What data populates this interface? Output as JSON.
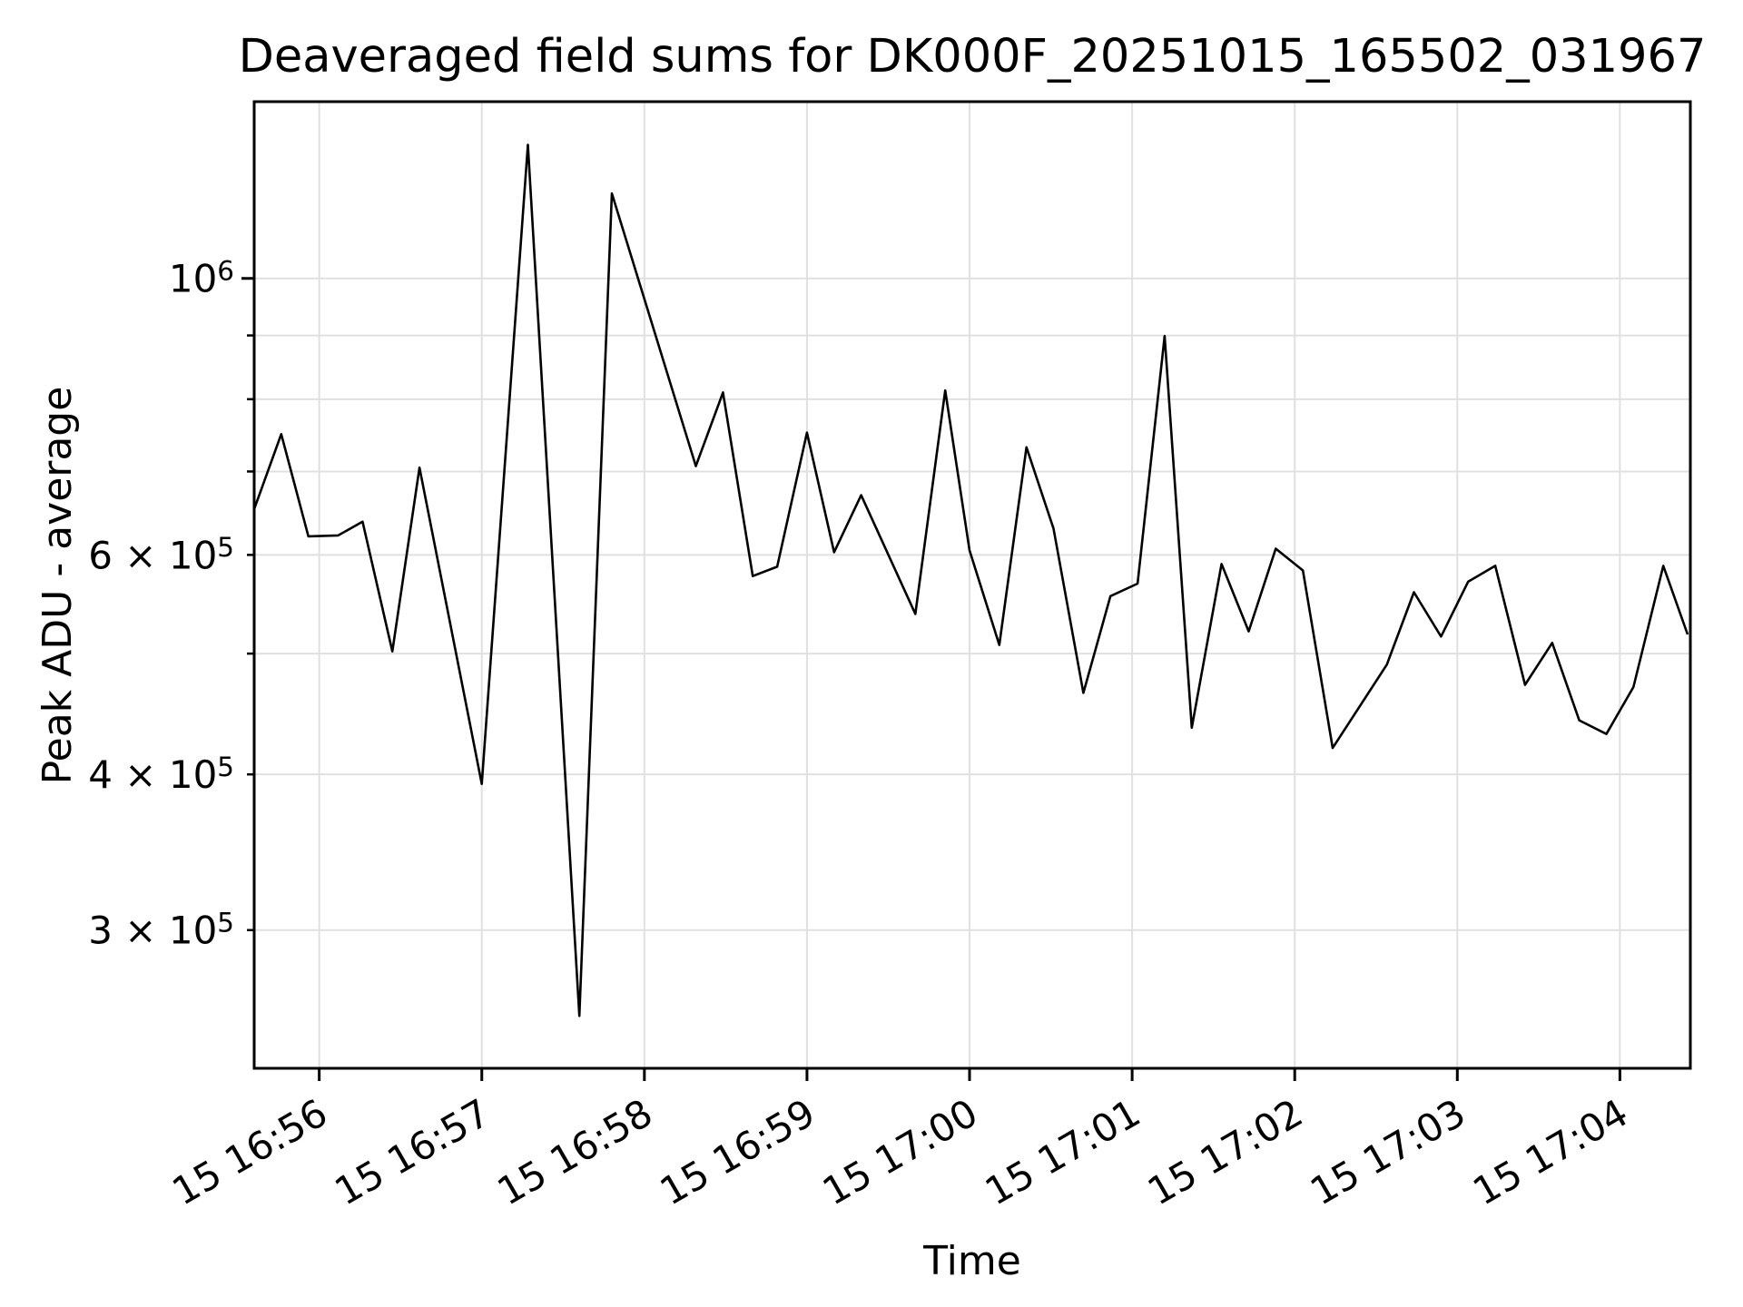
{
  "title": "Deaveraged field sums for DK000F_20251015_165502_031967",
  "x_axis": {
    "label": "Time",
    "ticks": [
      {
        "t": "16:56",
        "label": "15 16:56"
      },
      {
        "t": "16:57",
        "label": "15 16:57"
      },
      {
        "t": "16:58",
        "label": "15 16:58"
      },
      {
        "t": "16:59",
        "label": "15 16:59"
      },
      {
        "t": "17:00",
        "label": "15 17:00"
      },
      {
        "t": "17:01",
        "label": "15 17:01"
      },
      {
        "t": "17:02",
        "label": "15 17:02"
      },
      {
        "t": "17:03",
        "label": "15 17:03"
      },
      {
        "t": "17:04",
        "label": "15 17:04"
      }
    ]
  },
  "y_axis": {
    "label": "Peak ADU - average",
    "scale": "log",
    "ticks": [
      {
        "v": 1000000,
        "label": "10",
        "sup": "6",
        "major": true
      },
      {
        "v": 900000
      },
      {
        "v": 800000
      },
      {
        "v": 700000
      },
      {
        "v": 600000,
        "label": "6 × 10",
        "sup": "5"
      },
      {
        "v": 500000
      },
      {
        "v": 400000,
        "label": "4 × 10",
        "sup": "5"
      },
      {
        "v": 300000,
        "label": "3 × 10",
        "sup": "5"
      }
    ]
  },
  "style": {
    "line_color": "#000000",
    "grid_color": "#e0e0e0",
    "spine_color": "#000000",
    "background": "#ffffff"
  },
  "chart_data": {
    "type": "line",
    "title": "Deaveraged field sums for DK000F_20251015_165502_031967",
    "xlabel": "Time",
    "ylabel": "Peak ADU - average",
    "yscale": "log",
    "grid": true,
    "legend": "none",
    "x_unit": "time of day (day 15), HH:MM:SS",
    "xlim": [
      "16:55:36",
      "17:04:26"
    ],
    "ylim": [
      232400,
      1386200
    ],
    "series": [
      {
        "name": "deaveraged field sum",
        "x": [
          "16:55:36",
          "16:55:46",
          "16:55:56",
          "16:56:07",
          "16:56:16",
          "16:56:27",
          "16:56:37",
          "16:57:00",
          "16:57:17",
          "16:57:36",
          "16:57:48",
          "16:58:19",
          "16:58:29",
          "16:58:40",
          "16:58:49",
          "16:59:00",
          "16:59:10",
          "16:59:20",
          "16:59:40",
          "16:59:51",
          "17:00:00",
          "17:00:11",
          "17:00:21",
          "17:00:31",
          "17:00:42",
          "17:00:52",
          "17:01:02",
          "17:01:12",
          "17:01:22",
          "17:01:33",
          "17:01:43",
          "17:01:53",
          "17:02:03",
          "17:02:14",
          "17:02:34",
          "17:02:44",
          "17:02:54",
          "17:03:04",
          "17:03:14",
          "17:03:25",
          "17:03:35",
          "17:03:45",
          "17:03:55",
          "17:04:05",
          "17:04:16",
          "17:04:25"
        ],
        "y": [
          653000,
          750000,
          621000,
          622000,
          638000,
          502000,
          705000,
          393000,
          1280000,
          256000,
          1170000,
          707000,
          810000,
          577000,
          587000,
          752000,
          603000,
          670000,
          538000,
          813000,
          605000,
          508000,
          732000,
          630000,
          465000,
          556000,
          569000,
          899000,
          436000,
          590000,
          521000,
          607000,
          583000,
          420000,
          490000,
          560000,
          516000,
          571000,
          588000,
          472000,
          510000,
          442000,
          431000,
          470000,
          588000,
          518000
        ]
      }
    ]
  }
}
